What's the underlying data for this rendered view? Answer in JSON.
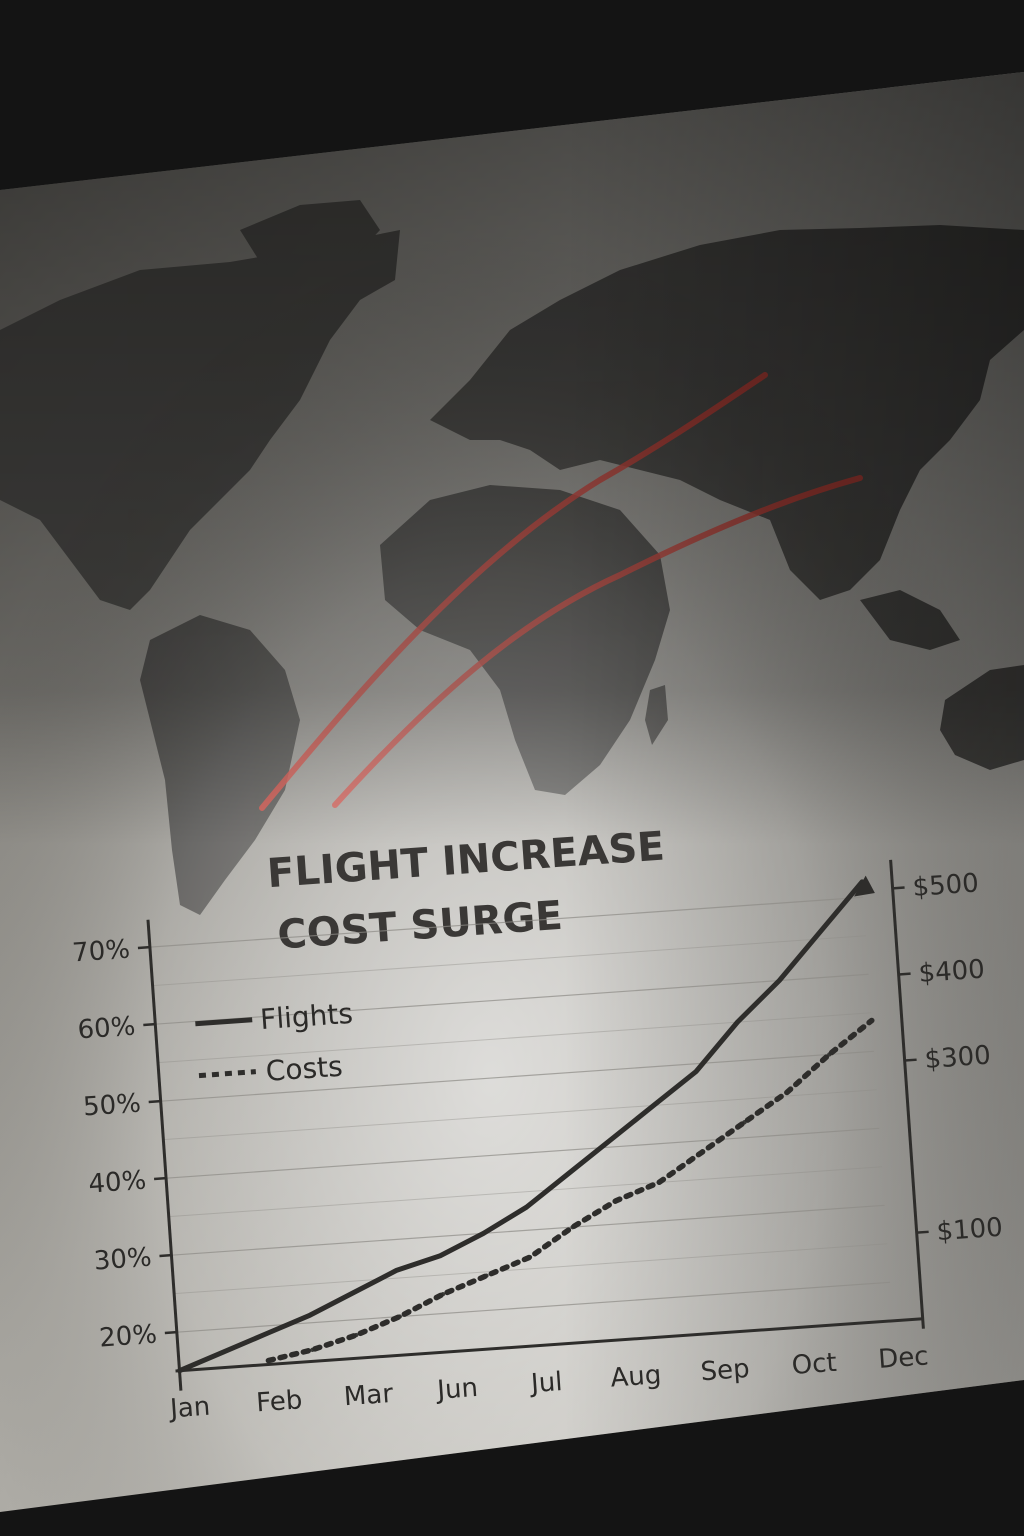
{
  "chart_data": {
    "type": "line",
    "title": [
      "FLIGHT INCREASE",
      "COST SURGE"
    ],
    "categories": [
      "Jan",
      "Feb",
      "Mar",
      "Jun",
      "Jul",
      "Aug",
      "Sep",
      "Oct",
      "Dec"
    ],
    "y_left": {
      "tick_labels": [
        "70%",
        "60%",
        "50%",
        "40%",
        "30%",
        "20%"
      ],
      "ticks": [
        70,
        60,
        50,
        40,
        30,
        20
      ],
      "ylim": [
        15,
        72
      ]
    },
    "y_right": {
      "tick_labels": [
        "$500",
        "$400",
        "$300",
        "$100"
      ],
      "ticks": [
        500,
        400,
        300,
        100
      ],
      "ylim": [
        0,
        510
      ]
    },
    "grid": true,
    "legend": {
      "position": "top-left",
      "entries": [
        {
          "label": "Flights",
          "style": "solid"
        },
        {
          "label": "Costs",
          "style": "dotted"
        }
      ]
    },
    "series": [
      {
        "name": "Flights",
        "axis": "left",
        "style": "solid",
        "x": [
          0,
          0.5,
          1,
          1.5,
          2,
          2.5,
          3,
          3.5,
          4,
          4.5,
          5,
          5.5,
          6,
          6.5,
          7,
          7.5,
          8
        ],
        "values": [
          15,
          17,
          19,
          21,
          23.5,
          26,
          27.5,
          30,
          33,
          37,
          41,
          45,
          49,
          55,
          60,
          66,
          72
        ]
      },
      {
        "name": "Costs",
        "axis": "left",
        "style": "dotted",
        "x": [
          1,
          1.5,
          2,
          2.5,
          3,
          3.5,
          4,
          4.5,
          5,
          5.5,
          6,
          6.5,
          7,
          7.5,
          8
        ],
        "values": [
          15.5,
          16.5,
          18,
          20,
          22.5,
          24.5,
          26.5,
          30,
          33,
          35,
          38.5,
          42,
          45.5,
          50,
          54
        ]
      }
    ]
  },
  "colors": {
    "route_lines": "#d8453c",
    "chart_ink": "#2e2d2b",
    "paper": "#dcdad4",
    "land": "#4a4946"
  },
  "background": {
    "kind": "world-map",
    "route_count": 2
  }
}
